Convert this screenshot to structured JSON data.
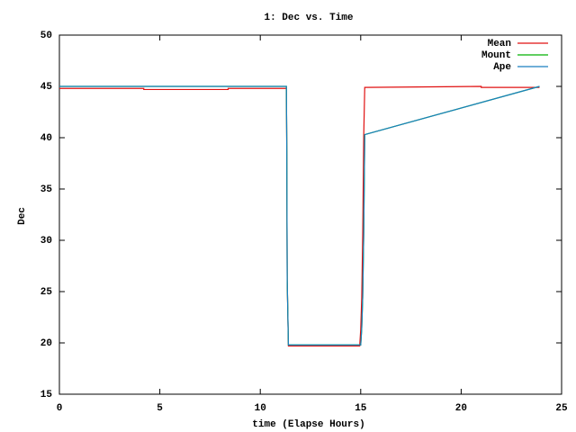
{
  "chart_data": {
    "type": "line",
    "title": "1: Dec vs. Time",
    "x_label": "time (Elapse Hours)",
    "y_label": "Dec",
    "xlim": [
      0,
      25
    ],
    "xticks": [
      0,
      5,
      10,
      15,
      20,
      25
    ],
    "ylim": [
      15,
      50
    ],
    "yticks": [
      15,
      20,
      25,
      30,
      35,
      40,
      45,
      50
    ],
    "grid": false,
    "legend": "top-right",
    "series": [
      {
        "name": "Mean",
        "color": "#e01010",
        "x": [
          0,
          4.2,
          4.2,
          8.4,
          8.4,
          11.3,
          11.32,
          11.34,
          11.4,
          14.95,
          15.0,
          15.05,
          15.1,
          15.15,
          15.2,
          21.0,
          21.0,
          23.9
        ],
        "values": [
          44.8,
          44.8,
          44.7,
          44.7,
          44.8,
          44.8,
          38.6,
          26.1,
          19.7,
          19.7,
          21.3,
          24.4,
          30.6,
          40.2,
          44.9,
          45.0,
          44.9,
          44.9
        ]
      },
      {
        "name": "Mount",
        "color": "#00b000",
        "x": [
          0,
          11.3,
          11.32,
          11.34,
          11.4,
          15.0,
          15.05,
          15.1,
          15.15,
          15.2,
          23.9
        ],
        "values": [
          45,
          45,
          38.7,
          26.2,
          19.8,
          19.8,
          21.4,
          24.5,
          30.7,
          40.3,
          45
        ]
      },
      {
        "name": "Ape",
        "color": "#1a7fc0",
        "x": [
          0,
          11.3,
          11.32,
          11.34,
          11.4,
          15.0,
          15.05,
          15.1,
          15.15,
          15.2,
          23.9
        ],
        "values": [
          45,
          45,
          38.7,
          26.2,
          19.8,
          19.8,
          21.4,
          24.5,
          30.7,
          40.3,
          45
        ]
      }
    ]
  }
}
